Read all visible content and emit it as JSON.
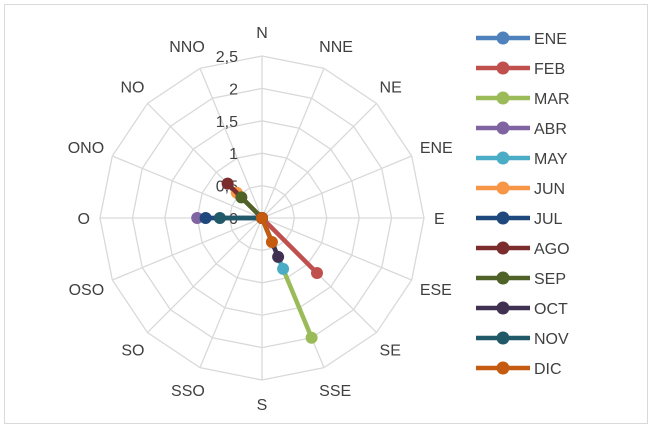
{
  "chart_data": {
    "type": "radar",
    "title": "",
    "directions": [
      "N",
      "NNE",
      "NE",
      "ENE",
      "E",
      "ESE",
      "SE",
      "SSE",
      "S",
      "SSO",
      "SO",
      "OSO",
      "O",
      "ONO",
      "NO",
      "NNO"
    ],
    "ticks": [
      "0",
      "0,5",
      "1",
      "1,5",
      "2",
      "2,5"
    ],
    "tick_values": [
      0,
      0.5,
      1,
      1.5,
      2,
      2.5
    ],
    "rmax": 2.5,
    "grid": true,
    "legend_position": "right",
    "series": [
      {
        "name": "ENE",
        "color": "#4f81bd",
        "values": [
          0,
          0,
          0,
          0,
          0,
          0,
          0,
          0,
          0,
          0,
          0,
          0,
          0,
          0,
          0,
          0
        ]
      },
      {
        "name": "FEB",
        "color": "#c0504d",
        "values": [
          0,
          0,
          0,
          0,
          0,
          0,
          1.2,
          0,
          0,
          0,
          0,
          0,
          0,
          0,
          0,
          0
        ]
      },
      {
        "name": "MAR",
        "color": "#9bbb59",
        "values": [
          0,
          0,
          0,
          0,
          0,
          0,
          0,
          2.0,
          0,
          0,
          0,
          0,
          0,
          0,
          0,
          0
        ]
      },
      {
        "name": "ABR",
        "color": "#8064a2",
        "values": [
          0,
          0,
          0,
          0,
          0,
          0,
          0,
          0,
          0,
          0,
          0,
          0,
          1.0,
          0,
          0,
          0
        ]
      },
      {
        "name": "MAY",
        "color": "#4bacc6",
        "values": [
          0,
          0,
          0,
          0,
          0,
          0,
          0,
          0.85,
          0,
          0,
          0,
          0,
          0,
          0,
          0,
          0
        ]
      },
      {
        "name": "JUN",
        "color": "#f79646",
        "values": [
          0,
          0,
          0,
          0,
          0,
          0,
          0,
          0,
          0,
          0,
          0,
          0,
          0,
          0,
          0.55,
          0
        ]
      },
      {
        "name": "JUL",
        "color": "#1f497d",
        "values": [
          0,
          0,
          0,
          0,
          0,
          0,
          0,
          0,
          0,
          0,
          0,
          0,
          0.87,
          0,
          0,
          0
        ]
      },
      {
        "name": "AGO",
        "color": "#7b2c2c",
        "values": [
          0,
          0,
          0,
          0,
          0,
          0,
          0,
          0,
          0,
          0,
          0,
          0,
          0,
          0,
          0.75,
          0
        ]
      },
      {
        "name": "SEP",
        "color": "#4f6228",
        "values": [
          0,
          0,
          0,
          0,
          0,
          0,
          0,
          0,
          0,
          0,
          0,
          0,
          0,
          0,
          0.45,
          0
        ]
      },
      {
        "name": "OCT",
        "color": "#403152",
        "values": [
          0,
          0,
          0,
          0,
          0,
          0,
          0,
          0.65,
          0,
          0,
          0,
          0,
          0,
          0,
          0,
          0
        ]
      },
      {
        "name": "NOV",
        "color": "#215968",
        "values": [
          0,
          0,
          0,
          0,
          0,
          0,
          0,
          0,
          0,
          0,
          0,
          0,
          0.65,
          0,
          0,
          0
        ]
      },
      {
        "name": "DIC",
        "color": "#c55a11",
        "values": [
          0,
          0,
          0,
          0,
          0,
          0,
          0,
          0.4,
          0,
          0,
          0,
          0,
          0,
          0,
          0,
          0
        ]
      }
    ]
  }
}
